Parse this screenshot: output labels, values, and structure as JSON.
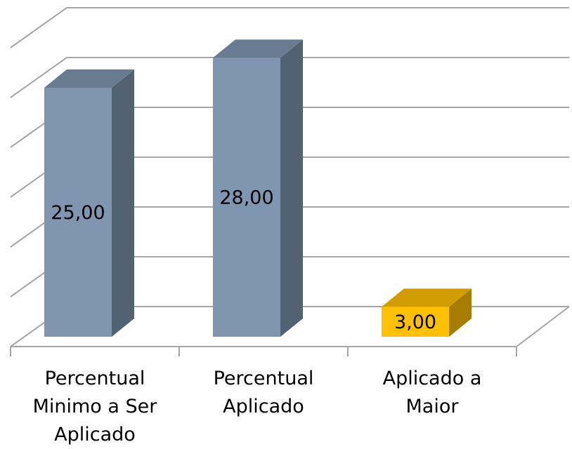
{
  "chart_data": {
    "type": "bar3d",
    "categories": [
      "Percentual Minimo a Ser Aplicado",
      "Percentual Aplicado",
      "Aplicado a Maior"
    ],
    "values": [
      25,
      28,
      3
    ],
    "value_labels": [
      "25,00",
      "28,00",
      "3,00"
    ],
    "colors": [
      "#8096b0",
      "#8096b0",
      "#ffc000"
    ],
    "ylim": [
      0,
      30
    ],
    "yticks": [
      0,
      5,
      10,
      15,
      20,
      25,
      30
    ],
    "grid": true
  }
}
